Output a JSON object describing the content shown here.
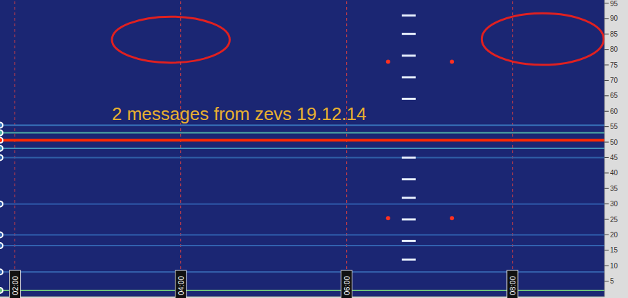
{
  "chart_data": {
    "type": "spectrogram",
    "annotations": [
      "2 messages from zevs 19.12.14"
    ],
    "xlim": [
      1.82,
      9.11
    ],
    "xticks": [
      {
        "value": 2,
        "label": "02:00"
      },
      {
        "value": 4,
        "label": "04:00"
      },
      {
        "value": 6,
        "label": "06:00"
      },
      {
        "value": 8,
        "label": "08:00"
      }
    ],
    "ylim": [
      0,
      96
    ],
    "yticks": [
      5,
      10,
      15,
      20,
      25,
      30,
      35,
      40,
      45,
      50,
      55,
      60,
      65,
      70,
      75,
      80,
      85,
      90,
      95
    ],
    "grid": true,
    "series": [
      {
        "type": "line",
        "color": "#ff2a00",
        "x": [
          1.82,
          9.11
        ],
        "values": [
          50.6,
          50.6
        ]
      },
      {
        "type": "line",
        "color": "#4fb0a8",
        "x": [
          1.82,
          9.11
        ],
        "values": [
          53,
          53
        ]
      },
      {
        "type": "line",
        "color": "#3a78c0",
        "x": [
          1.82,
          9.11
        ],
        "values": [
          55.5,
          55.5
        ]
      },
      {
        "type": "line",
        "color": "#3f90b8",
        "x": [
          1.82,
          9.11
        ],
        "values": [
          48,
          48
        ]
      },
      {
        "type": "line",
        "color": "#3060a8",
        "x": [
          1.82,
          9.11
        ],
        "values": [
          45,
          45
        ]
      },
      {
        "type": "line",
        "color": "#2f58a8",
        "x": [
          1.82,
          9.11
        ],
        "values": [
          30,
          30
        ]
      },
      {
        "type": "line",
        "color": "#3060b0",
        "x": [
          1.82,
          9.11
        ],
        "values": [
          20,
          20
        ]
      },
      {
        "type": "line",
        "color": "#3262b0",
        "x": [
          1.82,
          9.11
        ],
        "values": [
          16.5,
          16.5
        ]
      },
      {
        "type": "line",
        "color": "#3868b4",
        "x": [
          1.82,
          9.11
        ],
        "values": [
          8,
          8
        ]
      },
      {
        "type": "line",
        "color": "#6cc07a",
        "x": [
          1.82,
          9.11
        ],
        "values": [
          2,
          2
        ]
      },
      {
        "type": "scatter",
        "marker": "dash",
        "color": "#e8f0ff",
        "x": [
          6.75,
          6.75,
          6.75,
          6.75,
          6.75,
          6.75,
          6.75,
          6.75,
          6.75,
          6.75,
          6.75
        ],
        "values": [
          91,
          85,
          78,
          71,
          64,
          45,
          38,
          32,
          25,
          18,
          12
        ]
      },
      {
        "type": "scatter",
        "marker": "dot",
        "color": "#ff3020",
        "x": [
          6.5,
          6.5,
          7.27,
          7.27
        ],
        "values": [
          25.4,
          76,
          25.4,
          76
        ]
      }
    ],
    "highlights": [
      {
        "x": [
          3.17,
          4.59
        ],
        "y": [
          75.7,
          90.6
        ],
        "color": "#e02020"
      },
      {
        "x": [
          7.63,
          9.1
        ],
        "y": [
          75,
          91.7
        ],
        "color": "#e02020"
      }
    ]
  }
}
